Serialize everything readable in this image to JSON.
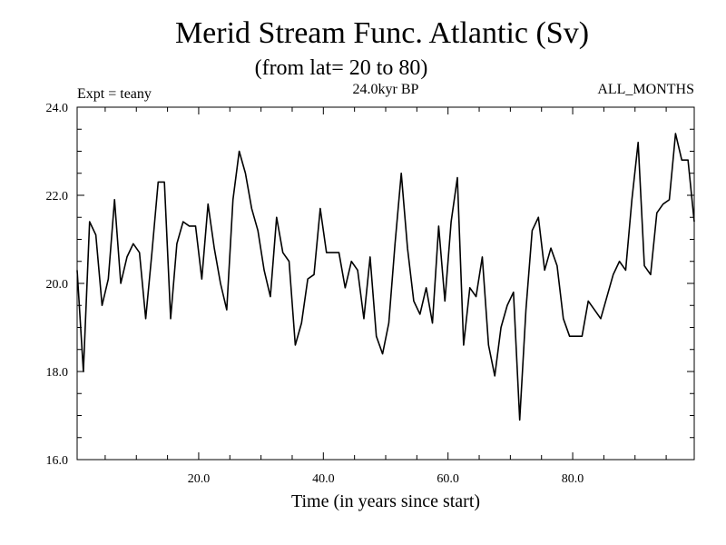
{
  "chart_data": {
    "type": "line",
    "title": "Merid Stream Func. Atlantic (Sv)",
    "subtitle": "(from lat= 20 to 80)",
    "left_label": "Expt = teany",
    "center_label": "24.0kyr BP",
    "right_label": "ALL_MONTHS",
    "xlabel": "Time (in years since start)",
    "ylabel": "",
    "xlim": [
      0.5,
      99.5
    ],
    "ylim": [
      16.0,
      24.0
    ],
    "x_ticks": [
      "20.0",
      "40.0",
      "60.0",
      "80.0"
    ],
    "y_ticks": [
      "16.0",
      "18.0",
      "20.0",
      "22.0",
      "24.0"
    ],
    "grid": false,
    "series": [
      {
        "name": "Merid Stream Func. Atlantic",
        "x_start": 0.5,
        "x_step": 1,
        "values": [
          20.3,
          18.0,
          21.4,
          21.1,
          19.5,
          20.1,
          21.9,
          20.0,
          20.6,
          20.9,
          20.7,
          19.2,
          20.7,
          22.3,
          22.3,
          19.2,
          20.9,
          21.4,
          21.3,
          21.3,
          20.1,
          21.8,
          20.8,
          20.0,
          19.4,
          21.9,
          23.0,
          22.5,
          21.7,
          21.2,
          20.3,
          19.7,
          21.5,
          20.7,
          20.5,
          18.6,
          19.1,
          20.1,
          20.2,
          21.7,
          20.7,
          20.7,
          20.7,
          19.9,
          20.5,
          20.3,
          19.2,
          20.6,
          18.8,
          18.4,
          19.1,
          20.9,
          22.5,
          20.8,
          19.6,
          19.3,
          19.9,
          19.1,
          21.3,
          19.6,
          21.4,
          22.4,
          18.6,
          19.9,
          19.7,
          20.6,
          18.6,
          17.9,
          19.0,
          19.5,
          19.8,
          16.9,
          19.4,
          21.2,
          21.5,
          20.3,
          20.8,
          20.4,
          19.2,
          18.8,
          18.8,
          18.8,
          19.6,
          19.4,
          19.2,
          19.7,
          20.2,
          20.5,
          20.3,
          21.9,
          23.2,
          20.4,
          20.2,
          21.6,
          21.8,
          21.9,
          23.4,
          22.8,
          22.8,
          21.4
        ]
      }
    ]
  }
}
